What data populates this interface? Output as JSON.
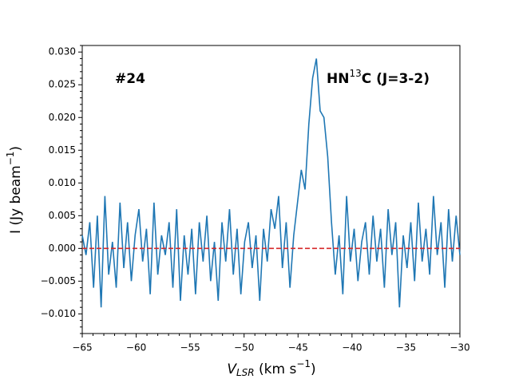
{
  "chart_data": {
    "type": "line",
    "annotations": {
      "left": "#24",
      "right_main": "HN",
      "right_sup": "13",
      "right_rest": "C (J=3-2)"
    },
    "x_label": {
      "main": "V",
      "sub": "LSR",
      "unit": " (km s",
      "sup": "−1",
      "close": ")"
    },
    "y_label": {
      "main": "I (Jy beam",
      "sup": "−1",
      "close": ")"
    },
    "x": [
      -65,
      -64.65,
      -64.3,
      -63.95,
      -63.6,
      -63.25,
      -62.9,
      -62.55,
      -62.2,
      -61.85,
      -61.5,
      -61.15,
      -60.8,
      -60.45,
      -60.1,
      -59.75,
      -59.4,
      -59.05,
      -58.7,
      -58.35,
      -58,
      -57.65,
      -57.3,
      -56.95,
      -56.6,
      -56.25,
      -55.9,
      -55.55,
      -55.2,
      -54.85,
      -54.5,
      -54.15,
      -53.8,
      -53.45,
      -53.1,
      -52.75,
      -52.4,
      -52.05,
      -51.7,
      -51.35,
      -51,
      -50.65,
      -50.3,
      -49.95,
      -49.6,
      -49.25,
      -48.9,
      -48.55,
      -48.2,
      -47.85,
      -47.5,
      -47.15,
      -46.8,
      -46.45,
      -46.1,
      -45.75,
      -45.4,
      -45.05,
      -44.7,
      -44.35,
      -44,
      -43.65,
      -43.3,
      -42.95,
      -42.6,
      -42.25,
      -41.9,
      -41.55,
      -41.2,
      -40.85,
      -40.5,
      -40.15,
      -39.8,
      -39.45,
      -39.1,
      -38.75,
      -38.4,
      -38.05,
      -37.7,
      -37.35,
      -37,
      -36.65,
      -36.3,
      -35.95,
      -35.6,
      -35.25,
      -34.9,
      -34.55,
      -34.2,
      -33.85,
      -33.5,
      -33.15,
      -32.8,
      -32.45,
      -32.1,
      -31.75,
      -31.4,
      -31.05,
      -30.7,
      -30.35,
      -30
    ],
    "series": [
      {
        "color": "#1f77b4",
        "values": [
          0.002,
          -0.001,
          0.004,
          -0.006,
          0.005,
          -0.009,
          0.008,
          -0.004,
          0.001,
          -0.006,
          0.007,
          -0.003,
          0.004,
          -0.005,
          0.002,
          0.006,
          -0.002,
          0.003,
          -0.007,
          0.007,
          -0.004,
          0.002,
          -0.001,
          0.004,
          -0.006,
          0.006,
          -0.008,
          0.002,
          -0.004,
          0.003,
          -0.007,
          0.004,
          -0.002,
          0.005,
          -0.005,
          0.001,
          -0.008,
          0.004,
          -0.002,
          0.006,
          -0.004,
          0.003,
          -0.007,
          0.001,
          0.004,
          -0.003,
          0.002,
          -0.008,
          0.003,
          -0.002,
          0.006,
          0.003,
          0.008,
          -0.003,
          0.004,
          -0.006,
          0.002,
          0.007,
          0.012,
          0.009,
          0.019,
          0.026,
          0.029,
          0.021,
          0.02,
          0.014,
          0.004,
          -0.004,
          0.002,
          -0.007,
          0.008,
          -0.002,
          0.003,
          -0.005,
          0.001,
          0.004,
          -0.004,
          0.005,
          -0.002,
          0.003,
          -0.006,
          0.006,
          -0.001,
          0.004,
          -0.009,
          0.002,
          -0.003,
          0.004,
          -0.005,
          0.007,
          -0.002,
          0.003,
          -0.004,
          0.008,
          -0.001,
          0.004,
          -0.006,
          0.006,
          -0.002,
          0.005,
          -0.001
        ]
      }
    ],
    "baseline": {
      "value": 0,
      "color": "#d62728"
    },
    "xlim": [
      -65,
      -30
    ],
    "ylim": [
      -0.013,
      0.031
    ],
    "xticks": [
      {
        "value": -65,
        "label": "−65"
      },
      {
        "value": -60,
        "label": "−60"
      },
      {
        "value": -55,
        "label": "−55"
      },
      {
        "value": -50,
        "label": "−50"
      },
      {
        "value": -45,
        "label": "−45"
      },
      {
        "value": -40,
        "label": "−40"
      },
      {
        "value": -35,
        "label": "−35"
      },
      {
        "value": -30,
        "label": "−30"
      }
    ],
    "yticks": [
      {
        "value": -0.01,
        "label": "−0.010"
      },
      {
        "value": -0.005,
        "label": "−0.005"
      },
      {
        "value": 0,
        "label": "0.000"
      },
      {
        "value": 0.005,
        "label": "0.005"
      },
      {
        "value": 0.01,
        "label": "0.010"
      },
      {
        "value": 0.015,
        "label": "0.015"
      },
      {
        "value": 0.02,
        "label": "0.020"
      },
      {
        "value": 0.025,
        "label": "0.025"
      },
      {
        "value": 0.03,
        "label": "0.030"
      }
    ],
    "xminorticks": [
      -64,
      -63,
      -62,
      -61,
      -59,
      -58,
      -57,
      -56,
      -54,
      -53,
      -52,
      -51,
      -49,
      -48,
      -47,
      -46,
      -44,
      -43,
      -42,
      -41,
      -39,
      -38,
      -37,
      -36,
      -34,
      -33,
      -32,
      -31
    ],
    "yminorticks": [
      -0.013,
      -0.012,
      -0.011,
      -0.009,
      -0.008,
      -0.007,
      -0.006,
      -0.004,
      -0.003,
      -0.002,
      -0.001,
      0.001,
      0.002,
      0.003,
      0.004,
      0.006,
      0.007,
      0.008,
      0.009,
      0.011,
      0.012,
      0.013,
      0.014,
      0.016,
      0.017,
      0.018,
      0.019,
      0.021,
      0.022,
      0.023,
      0.024,
      0.026,
      0.027,
      0.028,
      0.029,
      0.031
    ]
  }
}
